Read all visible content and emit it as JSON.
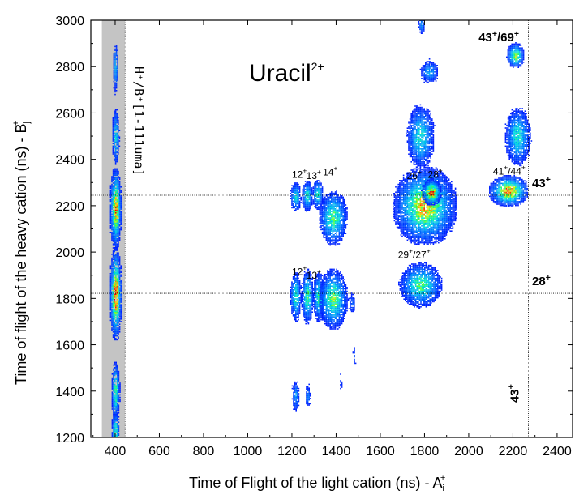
{
  "chart_data": {
    "type": "heatmap",
    "title": "Uracil²⁺",
    "xlabel": "Time of Flight of the light cation (ns) - A",
    "xlabel_sub": "i",
    "xlabel_sup": "+",
    "ylabel": "Time of flight of the heavy cation (ns)  - B",
    "ylabel_sub": "j",
    "ylabel_sup": "+",
    "xlim": [
      290,
      2470
    ],
    "ylim": [
      1200,
      3000
    ],
    "xticks": [
      400,
      600,
      800,
      1000,
      1200,
      1400,
      1600,
      1800,
      2000,
      2200,
      2400
    ],
    "yticks": [
      1200,
      1400,
      1600,
      1800,
      2000,
      2200,
      2400,
      2600,
      2800,
      3000
    ],
    "grid": false,
    "shaded_band": {
      "x0": 340,
      "x1": 445,
      "label": "H⁺/B⁺[1-111uma]"
    },
    "reference_lines": {
      "horizontal": [
        {
          "y": 2245,
          "label": "43⁺"
        },
        {
          "y": 1822,
          "label": "28⁺"
        }
      ],
      "vertical": [
        {
          "x": 2270,
          "label": "43⁺"
        }
      ]
    },
    "annotations": [
      {
        "text": "12⁺",
        "x": 1200,
        "y": 2320
      },
      {
        "text": "13⁺",
        "x": 1265,
        "y": 2315
      },
      {
        "text": "14⁺",
        "x": 1340,
        "y": 2330
      },
      {
        "text": "26⁺",
        "x": 1720,
        "y": 2315
      },
      {
        "text": "28⁺",
        "x": 1815,
        "y": 2320
      },
      {
        "text": "41⁺/44⁺",
        "x": 2110,
        "y": 2335
      },
      {
        "text": "12⁺",
        "x": 1200,
        "y": 1900
      },
      {
        "text": "13⁺",
        "x": 1265,
        "y": 1885
      },
      {
        "text": "29⁺/27⁺",
        "x": 1680,
        "y": 1975
      },
      {
        "text": "43⁺/69⁺",
        "x": 2045,
        "y": 2910
      }
    ],
    "islands": [
      {
        "x": 400,
        "y": 2800,
        "sx": 6,
        "sy": 55,
        "peak": 0.35
      },
      {
        "x": 400,
        "y": 2500,
        "sx": 8,
        "sy": 60,
        "peak": 0.45
      },
      {
        "x": 400,
        "y": 2190,
        "sx": 12,
        "sy": 80,
        "peak": 0.85
      },
      {
        "x": 400,
        "y": 1820,
        "sx": 12,
        "sy": 90,
        "peak": 0.95
      },
      {
        "x": 400,
        "y": 1400,
        "sx": 9,
        "sy": 60,
        "peak": 0.6
      },
      {
        "x": 400,
        "y": 1230,
        "sx": 9,
        "sy": 40,
        "peak": 0.55
      },
      {
        "x": 1215,
        "y": 2240,
        "sx": 12,
        "sy": 32,
        "peak": 0.45
      },
      {
        "x": 1268,
        "y": 2245,
        "sx": 12,
        "sy": 32,
        "peak": 0.5
      },
      {
        "x": 1315,
        "y": 2250,
        "sx": 12,
        "sy": 32,
        "peak": 0.5
      },
      {
        "x": 1385,
        "y": 2150,
        "sx": 30,
        "sy": 55,
        "peak": 0.6
      },
      {
        "x": 1215,
        "y": 1810,
        "sx": 12,
        "sy": 50,
        "peak": 0.55
      },
      {
        "x": 1268,
        "y": 1810,
        "sx": 13,
        "sy": 55,
        "peak": 0.6
      },
      {
        "x": 1320,
        "y": 1810,
        "sx": 13,
        "sy": 50,
        "peak": 0.55
      },
      {
        "x": 1385,
        "y": 1800,
        "sx": 30,
        "sy": 60,
        "peak": 0.65
      },
      {
        "x": 1215,
        "y": 1380,
        "sx": 9,
        "sy": 35,
        "peak": 0.3
      },
      {
        "x": 1270,
        "y": 1380,
        "sx": 7,
        "sy": 25,
        "peak": 0.25
      },
      {
        "x": 1800,
        "y": 2200,
        "sx": 65,
        "sy": 75,
        "peak": 0.8
      },
      {
        "x": 1830,
        "y": 2260,
        "sx": 20,
        "sy": 25,
        "peak": 0.95
      },
      {
        "x": 1780,
        "y": 1860,
        "sx": 45,
        "sy": 45,
        "peak": 0.6
      },
      {
        "x": 2180,
        "y": 2265,
        "sx": 40,
        "sy": 30,
        "peak": 0.9
      },
      {
        "x": 1780,
        "y": 2500,
        "sx": 30,
        "sy": 65,
        "peak": 0.5
      },
      {
        "x": 1820,
        "y": 2780,
        "sx": 20,
        "sy": 25,
        "peak": 0.35
      },
      {
        "x": 2220,
        "y": 2500,
        "sx": 28,
        "sy": 60,
        "peak": 0.5
      },
      {
        "x": 2210,
        "y": 2850,
        "sx": 18,
        "sy": 25,
        "peak": 0.7
      },
      {
        "x": 1785,
        "y": 2980,
        "sx": 8,
        "sy": 20,
        "peak": 0.3
      },
      {
        "x": 1470,
        "y": 1780,
        "sx": 8,
        "sy": 25,
        "peak": 0.2
      },
      {
        "x": 1480,
        "y": 1555,
        "sx": 4,
        "sy": 25,
        "peak": 0.15
      },
      {
        "x": 1420,
        "y": 1440,
        "sx": 5,
        "sy": 20,
        "peak": 0.12
      }
    ]
  }
}
